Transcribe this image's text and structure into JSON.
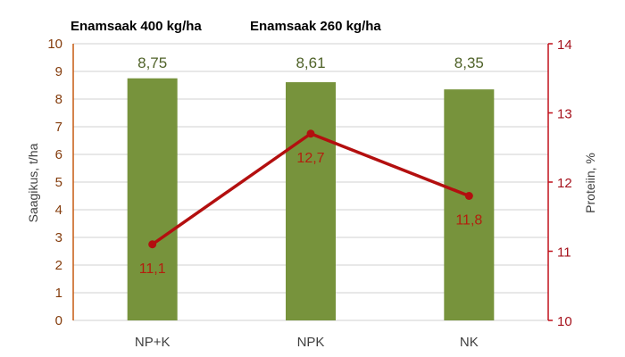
{
  "chart_data": {
    "type": "bar+line",
    "titles": [
      "Enamsaak 400 kg/ha",
      "Enamsaak 260 kg/ha"
    ],
    "categories": [
      "NP+K",
      "NPK",
      "NK"
    ],
    "series": [
      {
        "name": "Saagikus, t/ha",
        "type": "bar",
        "axis": "left",
        "values": [
          8.75,
          8.61,
          8.35
        ],
        "labels": [
          "8,75",
          "8,61",
          "8,35"
        ],
        "color": "#77933c"
      },
      {
        "name": "Proteiin, %",
        "type": "line",
        "axis": "right",
        "values": [
          11.1,
          12.7,
          11.8
        ],
        "labels": [
          "11,1",
          "12,7",
          "11,8"
        ],
        "color": "#b30f0f"
      }
    ],
    "ylabel": "Saagikus, t/ha",
    "ylabel_right": "Proteiin, %",
    "ylim": [
      0,
      10
    ],
    "ylim_right": [
      10,
      14
    ],
    "yticks": [
      "0",
      "1",
      "2",
      "3",
      "4",
      "5",
      "6",
      "7",
      "8",
      "9",
      "10"
    ],
    "yticks_right": [
      "10",
      "11",
      "12",
      "13",
      "14"
    ],
    "grid": true,
    "legend": "none"
  },
  "colors": {
    "bar": "#77933c",
    "line": "#b30f0f",
    "left_axis": "#c55a11",
    "right_axis": "#c0101b",
    "grid": "#d9d9d9"
  }
}
